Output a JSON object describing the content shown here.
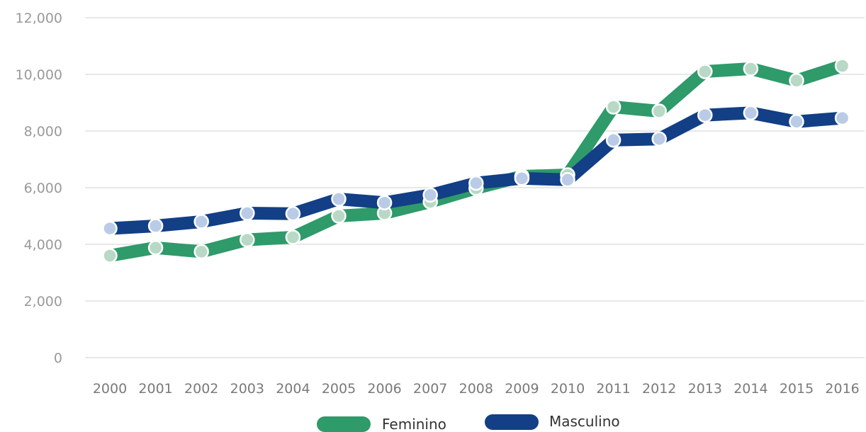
{
  "colors": {
    "feminino": "#2f9a6a",
    "feminino_marker": "#b7d9c6",
    "masculino": "#123f86",
    "masculino_marker": "#b9cbe6",
    "grid": "#d9d9d9"
  },
  "chart_data": {
    "type": "line",
    "x": [
      "2000",
      "2001",
      "2002",
      "2003",
      "2004",
      "2005",
      "2006",
      "2007",
      "2008",
      "2009",
      "2010",
      "2011",
      "2012",
      "2013",
      "2014",
      "2015",
      "2016"
    ],
    "y_ticks": [
      "0",
      "2,000",
      "4,000",
      "6,000",
      "8,000",
      "10,000",
      "12,000"
    ],
    "ylim": [
      0,
      12000
    ],
    "grid": true,
    "legend_position": "bottom",
    "series": [
      {
        "name": "Feminino",
        "values": [
          3600,
          3880,
          3740,
          4160,
          4250,
          5000,
          5100,
          5500,
          5980,
          6400,
          6450,
          8850,
          8700,
          10100,
          10200,
          9780,
          10300
        ]
      },
      {
        "name": "Masculino",
        "values": [
          4560,
          4650,
          4800,
          5100,
          5080,
          5600,
          5470,
          5740,
          6160,
          6330,
          6280,
          7680,
          7720,
          8560,
          8640,
          8330,
          8460
        ]
      }
    ]
  }
}
